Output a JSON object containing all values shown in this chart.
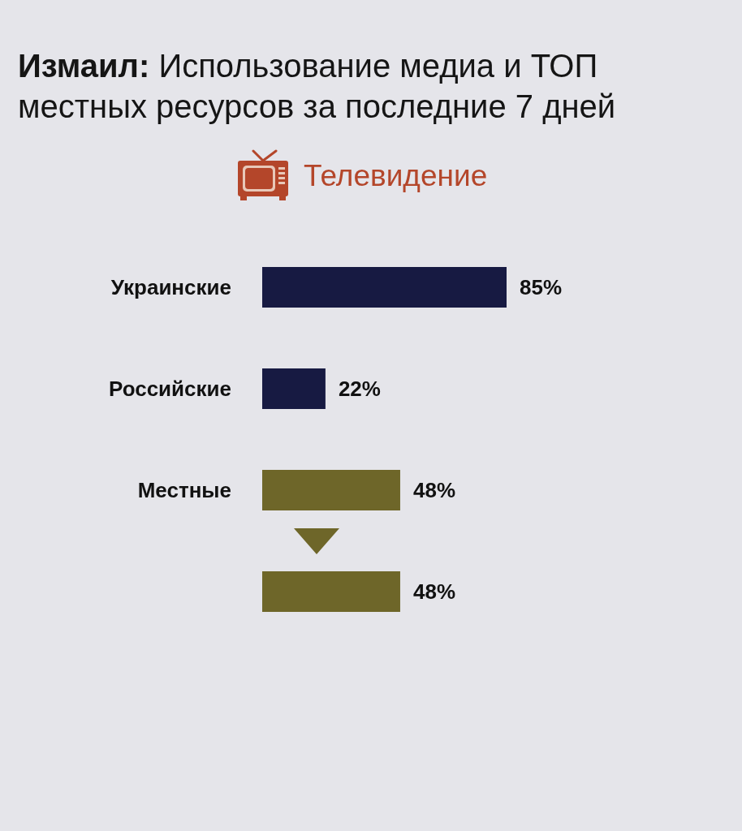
{
  "chart_data": {
    "type": "bar",
    "title": "Измаил: Использование медиа и ТОП местных ресурсов за последние 7 дней",
    "subtitle": "Телевидение",
    "orientation": "horizontal",
    "tick_labels": "y",
    "categories": [
      "Украинские",
      "Российские",
      "Местные",
      null
    ],
    "values": [
      85,
      22,
      48,
      48
    ],
    "colors": [
      "#171a42",
      "#171a42",
      "#6e6629",
      "#6e6629"
    ],
    "value_labels": [
      "85%",
      "22%",
      "48%",
      "48%"
    ]
  }
}
